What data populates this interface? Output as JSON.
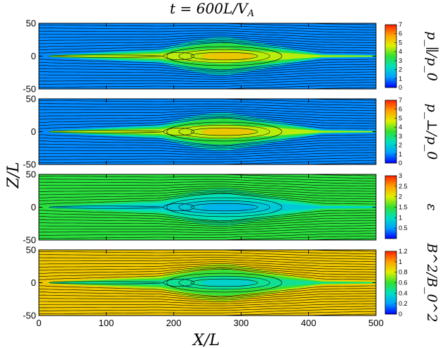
{
  "chart_data": {
    "type": "heatmap",
    "title": "t = 600L/V_A",
    "xlabel": "X/L",
    "ylabel": "Z/L",
    "xlim": [
      0,
      500
    ],
    "ylim": [
      -50,
      50
    ],
    "x_ticks": [
      "0",
      "100",
      "200",
      "300",
      "400",
      "500"
    ],
    "y_ticks": [
      "-50",
      "0",
      "50"
    ],
    "contours": "magnetic field lines drawn in black",
    "colormap": [
      "#0000ff",
      "#00a0ff",
      "#00e0c0",
      "#30e030",
      "#e0f000",
      "#ffa000",
      "#ff2000"
    ],
    "panels": [
      {
        "colorbar_label": "p_∥/p_0",
        "range": [
          0,
          7
        ],
        "ticks": [
          "0",
          "1",
          "2",
          "3",
          "4",
          "5",
          "6",
          "7"
        ],
        "background": 1.0,
        "sheet_peak": 4.5
      },
      {
        "colorbar_label": "p_⊥/p_0",
        "range": [
          0,
          7
        ],
        "ticks": [
          "0",
          "1",
          "2",
          "3",
          "4",
          "5",
          "6",
          "7"
        ],
        "background": 1.0,
        "sheet_peak": 4.5
      },
      {
        "colorbar_label": "ε",
        "range": [
          0,
          3
        ],
        "ticks": [
          "0.5",
          "1",
          "1.5",
          "2",
          "2.5",
          "3"
        ],
        "background": 1.45,
        "sheet_peak": 0.8
      },
      {
        "colorbar_label": "B^2/B_0^2",
        "range": [
          0,
          1.2
        ],
        "ticks": [
          "0",
          "0.2",
          "0.4",
          "0.6",
          "0.8",
          "1",
          "1.2"
        ],
        "background": 0.9,
        "sheet_peak": 0.45
      }
    ]
  }
}
